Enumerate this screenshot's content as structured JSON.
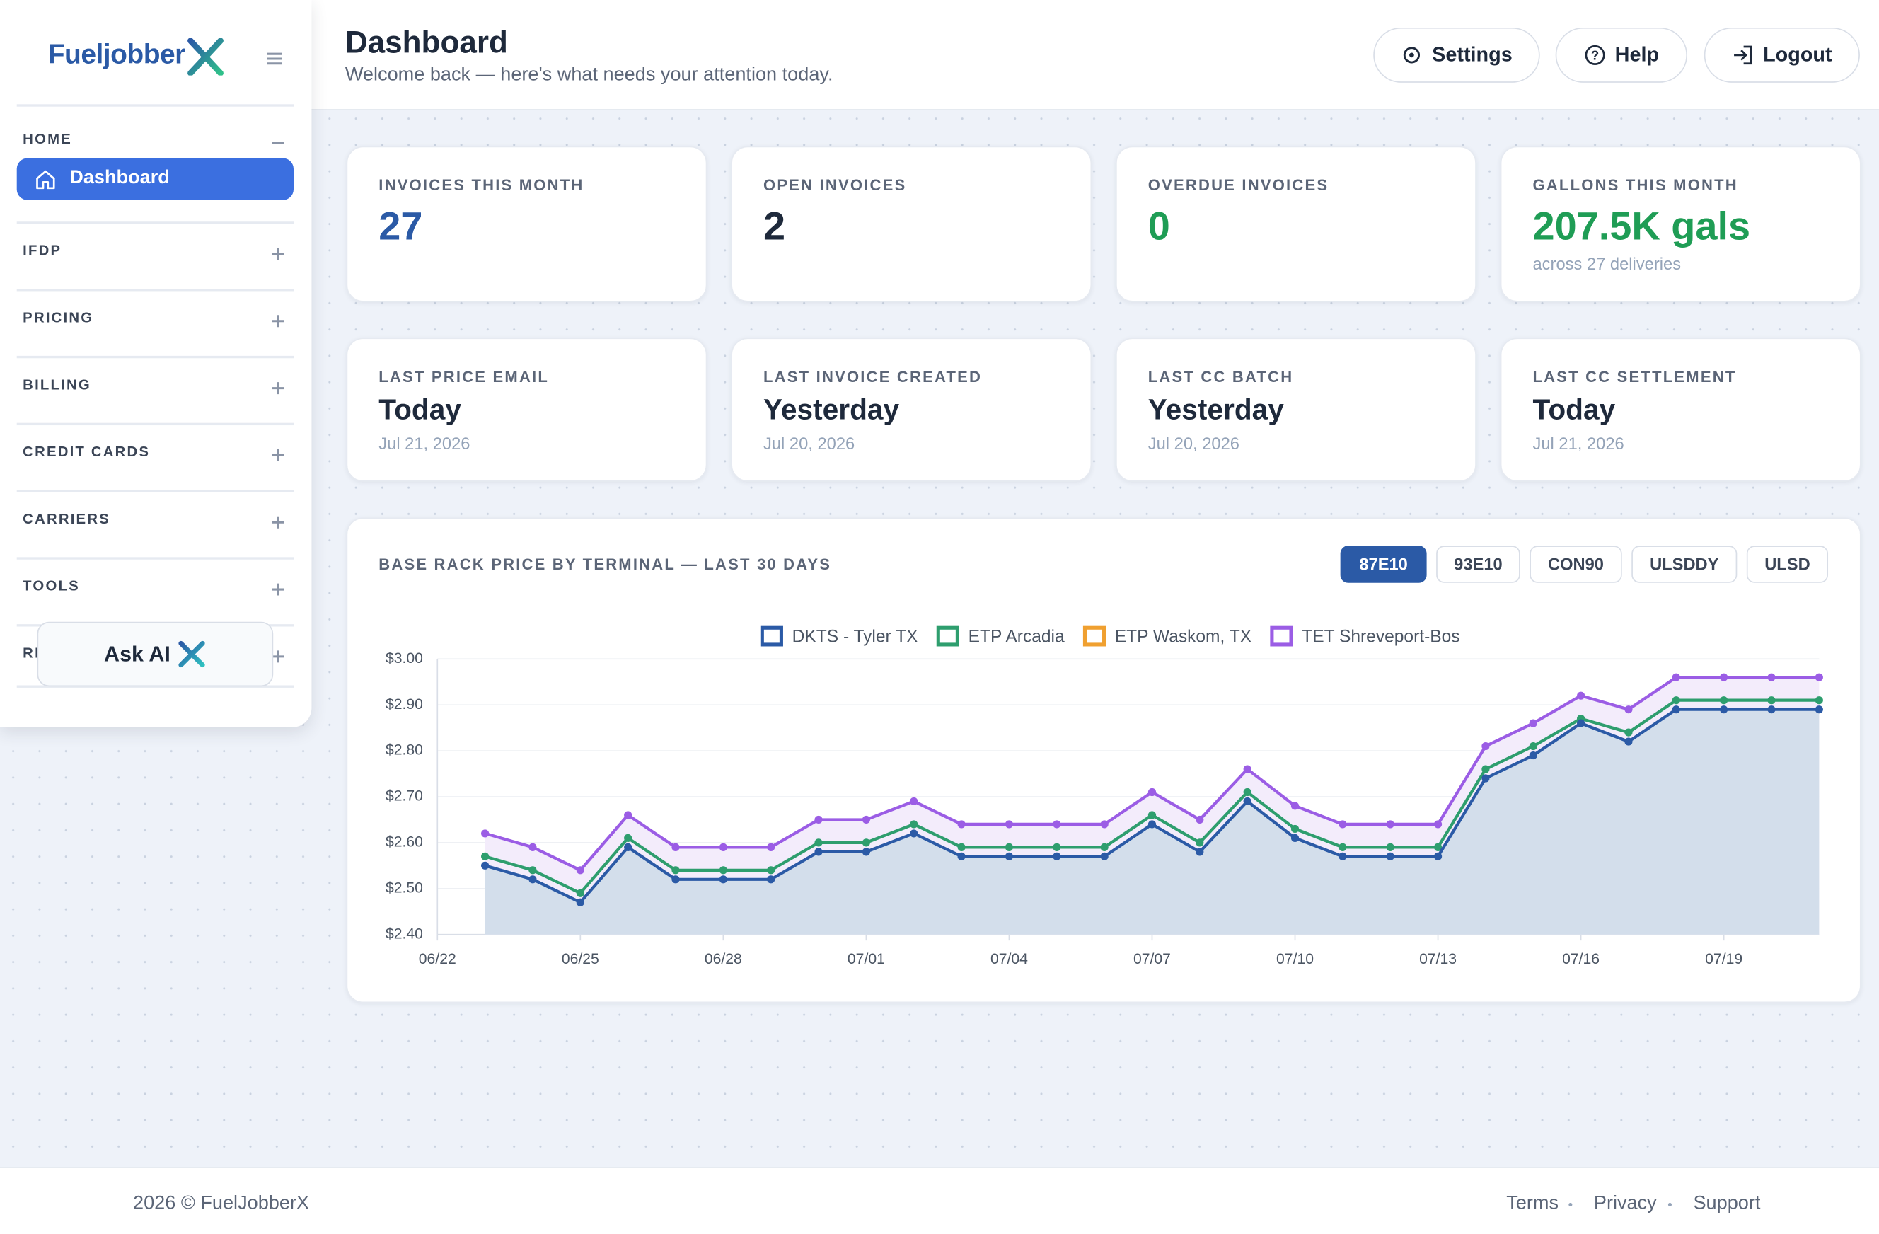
{
  "sidebar": {
    "brand": "Fueljobber",
    "sections": [
      {
        "label": "HOME",
        "items": [
          "Dashboard"
        ]
      },
      {
        "label": "IFDP"
      },
      {
        "label": "PRICING"
      },
      {
        "label": "BILLING"
      },
      {
        "label": "CREDIT CARDS"
      },
      {
        "label": "CARRIERS"
      },
      {
        "label": "TOOLS"
      },
      {
        "label": "REPORTS"
      }
    ],
    "ask_ai": "Ask AI"
  },
  "header": {
    "title": "Dashboard",
    "subtitle": "Welcome back — here's what needs your attention today.",
    "buttons": [
      "Settings",
      "Help",
      "Logout"
    ]
  },
  "stats": [
    {
      "label": "INVOICES THIS MONTH",
      "value": "27"
    },
    {
      "label": "OPEN INVOICES",
      "value": "2"
    },
    {
      "label": "OVERDUE INVOICES",
      "value": "0"
    },
    {
      "label": "GALLONS THIS MONTH",
      "value": "207.5K gals",
      "sub": "across 27 deliveries"
    }
  ],
  "activity": [
    {
      "label": "LAST PRICE EMAIL",
      "value": "Today",
      "date": "Jul 21, 2026"
    },
    {
      "label": "LAST INVOICE CREATED",
      "value": "Yesterday",
      "date": "Jul 20, 2026"
    },
    {
      "label": "LAST CC BATCH",
      "value": "Yesterday",
      "date": "Jul 20, 2026"
    },
    {
      "label": "LAST CC SETTLEMENT",
      "value": "Today",
      "date": "Jul 21, 2026"
    }
  ],
  "product_tabs": [
    "87E10",
    "93E10",
    "CON90",
    "ULSDDY",
    "ULSD"
  ],
  "active_tab": "87E10",
  "chart_data": {
    "type": "line",
    "title": "BASE RACK PRICE BY TERMINAL — LAST 30 DAYS",
    "x": [
      "06/23",
      "06/24",
      "06/25",
      "06/26",
      "06/27",
      "06/28",
      "06/29",
      "06/30",
      "07/01",
      "07/02",
      "07/03",
      "07/04",
      "07/05",
      "07/06",
      "07/07",
      "07/08",
      "07/09",
      "07/10",
      "07/11",
      "07/12",
      "07/13",
      "07/14",
      "07/15",
      "07/16",
      "07/17",
      "07/18",
      "07/19",
      "07/20",
      "07/21"
    ],
    "xlim": [
      "06/22",
      "07/21"
    ],
    "xticks": [
      "06/22",
      "06/25",
      "06/28",
      "07/01",
      "07/04",
      "07/07",
      "07/10",
      "07/13",
      "07/16",
      "07/19"
    ],
    "ylim": [
      2.4,
      3.0
    ],
    "yticks": [
      {
        "value": 2.4,
        "label": "$2.40"
      },
      {
        "value": 2.5,
        "label": "$2.50"
      },
      {
        "value": 2.6,
        "label": "$2.60"
      },
      {
        "value": 2.7,
        "label": "$2.70"
      },
      {
        "value": 2.8,
        "label": "$2.80"
      },
      {
        "value": 2.9,
        "label": "$2.90"
      },
      {
        "value": 3.0,
        "label": "$3.00"
      }
    ],
    "grid": true,
    "legend": "top",
    "series": [
      {
        "name": "DKTS - Tyler TX",
        "color": "#2b5aa6",
        "fill": "#d3deeb",
        "values": [
          2.55,
          2.52,
          2.47,
          2.59,
          2.52,
          2.52,
          2.52,
          2.58,
          2.58,
          2.62,
          2.57,
          2.57,
          2.57,
          2.57,
          2.64,
          2.58,
          2.69,
          2.61,
          2.57,
          2.57,
          2.57,
          2.74,
          2.79,
          2.86,
          2.82,
          2.89,
          2.89,
          2.89,
          2.89
        ]
      },
      {
        "name": "ETP Arcadia",
        "color": "#2e9e6e",
        "values": [
          2.57,
          2.54,
          2.49,
          2.61,
          2.54,
          2.54,
          2.54,
          2.6,
          2.6,
          2.64,
          2.59,
          2.59,
          2.59,
          2.59,
          2.66,
          2.6,
          2.71,
          2.63,
          2.59,
          2.59,
          2.59,
          2.76,
          2.81,
          2.87,
          2.84,
          2.91,
          2.91,
          2.91,
          2.91
        ]
      },
      {
        "name": "ETP Waskom, TX",
        "color": "#f0a030",
        "values": [
          null,
          null,
          null,
          null,
          null,
          null,
          null,
          null,
          null,
          null,
          null,
          null,
          null,
          null,
          null,
          null,
          null,
          null,
          null,
          null,
          null,
          null,
          null,
          null,
          null,
          null,
          null,
          null,
          null
        ]
      },
      {
        "name": "TET Shreveport-Bos",
        "color": "#9b5de5",
        "fill": "#f3ecfb",
        "values": [
          2.62,
          2.59,
          2.54,
          2.66,
          2.59,
          2.59,
          2.59,
          2.65,
          2.65,
          2.69,
          2.64,
          2.64,
          2.64,
          2.64,
          2.71,
          2.65,
          2.76,
          2.68,
          2.64,
          2.64,
          2.64,
          2.81,
          2.86,
          2.92,
          2.89,
          2.96,
          2.96,
          2.96,
          2.96
        ]
      }
    ]
  },
  "footer": {
    "copyright": "2026 © FuelJobberX",
    "links": [
      "Terms",
      "Privacy",
      "Support"
    ]
  }
}
